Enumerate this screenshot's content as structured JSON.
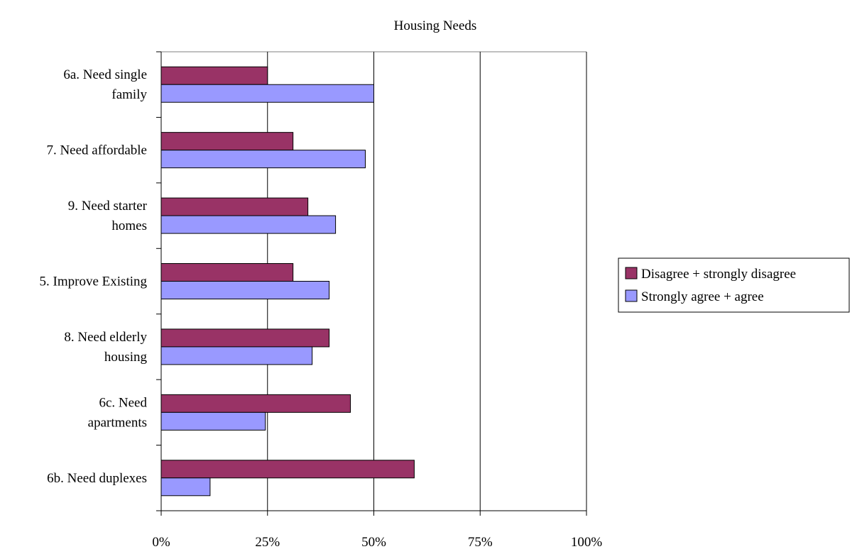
{
  "chart_data": {
    "type": "bar",
    "orientation": "horizontal",
    "title": "Housing Needs",
    "xlabel": "",
    "ylabel": "",
    "xlim": [
      0,
      100
    ],
    "x_ticks": [
      0,
      25,
      50,
      75,
      100
    ],
    "x_tick_labels": [
      "0%",
      "25%",
      "50%",
      "75%",
      "100%"
    ],
    "grid": "vertical",
    "legend_position": "right",
    "categories": [
      [
        "6a. Need single",
        "family"
      ],
      [
        "7. Need affordable"
      ],
      [
        "9. Need starter",
        "homes"
      ],
      [
        "5. Improve Existing"
      ],
      [
        "8. Need elderly",
        "housing"
      ],
      [
        "6c. Need",
        "apartments"
      ],
      [
        "6b. Need duplexes"
      ]
    ],
    "series": [
      {
        "name": "Disagree + strongly disagree",
        "color": "#993366",
        "values": [
          25,
          31,
          34.5,
          31,
          39.5,
          44.5,
          59.5
        ]
      },
      {
        "name": "Strongly agree + agree",
        "color": "#9999ff",
        "values": [
          50,
          48,
          41,
          39.5,
          35.5,
          24.5,
          11.5
        ]
      }
    ]
  }
}
